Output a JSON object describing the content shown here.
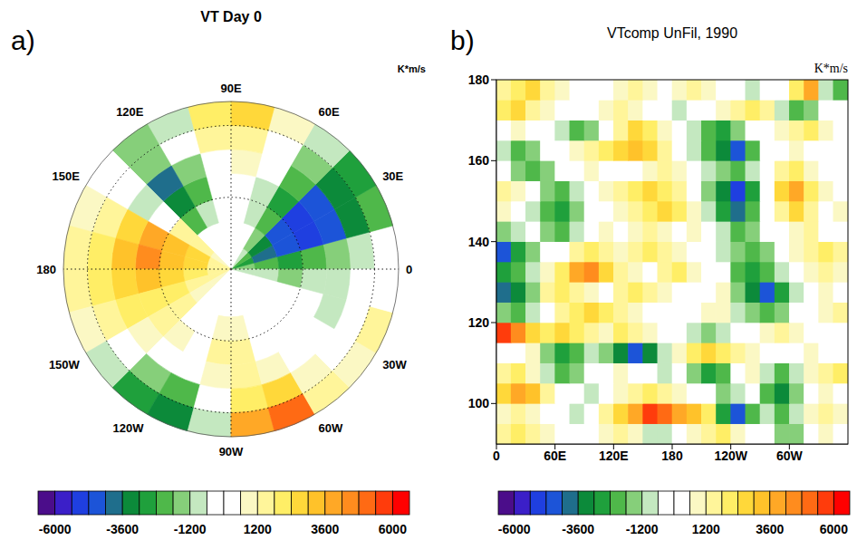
{
  "chart_data": [
    {
      "type": "polar_heatmap",
      "label": "a)",
      "title": "VT Day 0",
      "units": "K*m/s",
      "lon": [
        7.5,
        22.5,
        37.5,
        52.5,
        67.5,
        82.5,
        97.5,
        112.5,
        127.5,
        142.5,
        157.5,
        172.5,
        187.5,
        202.5,
        217.5,
        232.5,
        247.5,
        262.5,
        277.5,
        292.5,
        307.5,
        322.5,
        337.5,
        352.5
      ],
      "lat": [
        85,
        75,
        65,
        55,
        45,
        35,
        25
      ],
      "lat_range": [
        20,
        90
      ],
      "cells": [
        [
          -1800,
          -3000,
          -2400,
          -1200,
          0,
          0,
          0,
          0,
          0,
          600,
          1200,
          1200,
          1200,
          1200,
          600,
          0,
          0,
          0,
          0,
          0,
          0,
          0,
          -600,
          -1200
        ],
        [
          -2400,
          -4200,
          -3600,
          -1800,
          -600,
          0,
          0,
          0,
          -600,
          1200,
          2400,
          2400,
          1800,
          1200,
          600,
          0,
          0,
          0,
          0,
          0,
          0,
          0,
          0,
          -1200
        ],
        [
          -3000,
          -4800,
          -4800,
          -2400,
          -1200,
          0,
          0,
          -1200,
          -2400,
          1200,
          3000,
          3000,
          2400,
          1800,
          1200,
          0,
          0,
          600,
          600,
          0,
          0,
          0,
          -600,
          -1800
        ],
        [
          -2400,
          -5400,
          -5400,
          -3000,
          -1200,
          0,
          -600,
          -2400,
          -3600,
          -600,
          3600,
          4200,
          3000,
          1800,
          1200,
          600,
          0,
          1200,
          1200,
          0,
          0,
          0,
          -600,
          -1200
        ],
        [
          -1800,
          -4800,
          -4800,
          -2400,
          -600,
          600,
          0,
          -1800,
          -4200,
          -1200,
          2400,
          3000,
          2400,
          1800,
          600,
          0,
          -600,
          600,
          1200,
          600,
          0,
          0,
          -1200,
          -1200
        ],
        [
          -1200,
          -3600,
          -3600,
          -1800,
          0,
          1200,
          1200,
          -600,
          -1800,
          -600,
          1200,
          1800,
          1800,
          1200,
          0,
          -1800,
          -2400,
          -600,
          1800,
          2400,
          600,
          0,
          -600,
          -600
        ],
        [
          -600,
          -2400,
          -3000,
          -1200,
          600,
          2400,
          1800,
          -1200,
          -1800,
          -600,
          600,
          1200,
          1200,
          600,
          -1200,
          -3000,
          -3600,
          -1200,
          3600,
          4800,
          1200,
          600,
          1200,
          0
        ]
      ],
      "lon_ticks": [
        0,
        {
          "value": 30,
          "label": "30E"
        },
        {
          "value": 60,
          "label": "60E"
        },
        {
          "value": 90,
          "label": "90E"
        },
        {
          "value": 120,
          "label": "120E"
        },
        {
          "value": 150,
          "label": "150E"
        },
        180,
        {
          "value": 210,
          "label": "150W"
        },
        {
          "value": 240,
          "label": "120W"
        },
        {
          "value": 270,
          "label": "90W"
        },
        {
          "value": 300,
          "label": "60W"
        },
        {
          "value": 330,
          "label": "30W"
        }
      ],
      "lat_ticks": [
        30,
        60
      ],
      "grid": true,
      "colorbar": {
        "levels": [
          -6000,
          -5400,
          -4800,
          -4200,
          -3600,
          -3000,
          -2400,
          -1800,
          -1200,
          -600,
          0,
          600,
          1200,
          1800,
          2400,
          3000,
          3600,
          4200,
          4800,
          5400,
          6000
        ],
        "colors": [
          "#4b0d8a",
          "#3b1fc8",
          "#1f3fe0",
          "#1c54d8",
          "#1f6e8c",
          "#0c8a3a",
          "#1fa03c",
          "#4fb84a",
          "#86cf7a",
          "#c4e8c0",
          "#ffffff",
          "#ffffff",
          "#fbf8c4",
          "#fff59a",
          "#ffee66",
          "#ffd83a",
          "#ffc22a",
          "#ffa826",
          "#ff8c1e",
          "#ff6a14",
          "#ff3c0c",
          "#ff0000"
        ],
        "ticks": [
          -6000,
          -3600,
          -1200,
          1200,
          3600,
          6000
        ]
      }
    },
    {
      "type": "heatmap",
      "label": "b)",
      "title": "VTcomp UnFil, 1990",
      "units": "K*m/s",
      "x": [
        7.5,
        22.5,
        37.5,
        52.5,
        67.5,
        82.5,
        97.5,
        112.5,
        127.5,
        142.5,
        157.5,
        172.5,
        187.5,
        202.5,
        217.5,
        232.5,
        247.5,
        262.5,
        277.5,
        292.5,
        307.5,
        322.5,
        337.5,
        352.5
      ],
      "y": [
        92.5,
        97.5,
        102.5,
        107.5,
        112.5,
        117.5,
        122.5,
        127.5,
        132.5,
        137.5,
        142.5,
        147.5,
        152.5,
        157.5,
        162.5,
        167.5,
        172.5,
        177.5
      ],
      "cells": [
        [
          1200,
          1800,
          1500,
          600,
          0,
          -600,
          0,
          600,
          1200,
          900,
          -1200,
          -900,
          0,
          600,
          1200,
          1800,
          900,
          0,
          -600,
          -1800,
          -1500,
          0,
          600,
          0
        ],
        [
          600,
          1200,
          900,
          0,
          -600,
          -1200,
          0,
          1200,
          2400,
          3600,
          5400,
          4800,
          3600,
          3000,
          1800,
          -3000,
          -4800,
          -2400,
          -1200,
          -2400,
          -1200,
          600,
          1200,
          600
        ],
        [
          2400,
          3600,
          3000,
          1200,
          0,
          -600,
          -1200,
          0,
          600,
          1200,
          1800,
          1200,
          600,
          0,
          -600,
          -1800,
          -1200,
          -600,
          -2400,
          -3600,
          -1800,
          0,
          600,
          0
        ],
        [
          1200,
          1800,
          600,
          -1200,
          -2400,
          -1800,
          -600,
          0,
          600,
          0,
          -600,
          -1200,
          -600,
          -1800,
          -3000,
          -2400,
          -600,
          600,
          -1200,
          -2400,
          -1200,
          600,
          1200,
          1800
        ],
        [
          -600,
          0,
          600,
          -1800,
          -3000,
          -2400,
          -1200,
          -1800,
          -3600,
          -4800,
          -3600,
          -1200,
          600,
          1800,
          2400,
          1800,
          1200,
          600,
          0,
          -600,
          0,
          600,
          0,
          -600
        ],
        [
          5400,
          4200,
          2400,
          1800,
          2400,
          1800,
          1200,
          600,
          1800,
          1200,
          600,
          0,
          -600,
          -1200,
          -1800,
          -1200,
          -600,
          0,
          600,
          1200,
          600,
          0,
          -600,
          0
        ],
        [
          -1800,
          -2400,
          -1200,
          0,
          1200,
          1800,
          2400,
          1800,
          1200,
          600,
          0,
          -600,
          -600,
          0,
          600,
          600,
          -1200,
          -1800,
          -2400,
          -1800,
          -600,
          0,
          600,
          1200
        ],
        [
          -4200,
          -3600,
          -1800,
          1200,
          1800,
          1200,
          600,
          0,
          1200,
          1800,
          1200,
          600,
          0,
          -600,
          0,
          600,
          -1800,
          -3600,
          -4800,
          -3000,
          -1200,
          0,
          600,
          0
        ],
        [
          -3000,
          -2400,
          -1200,
          600,
          1800,
          3600,
          4200,
          2400,
          1200,
          600,
          0,
          1200,
          1800,
          600,
          0,
          -600,
          -2400,
          -3000,
          -2400,
          -1200,
          0,
          600,
          1200,
          600
        ],
        [
          -4800,
          -3000,
          -1800,
          -600,
          0,
          1200,
          1800,
          1200,
          600,
          1200,
          1800,
          1200,
          600,
          0,
          -600,
          -1200,
          -1800,
          -2400,
          -1800,
          -600,
          600,
          1200,
          1800,
          1200
        ],
        [
          -1800,
          -1200,
          -600,
          -1800,
          -2400,
          -1200,
          0,
          600,
          0,
          600,
          1200,
          600,
          0,
          600,
          0,
          -1200,
          -2400,
          -1800,
          -600,
          0,
          600,
          1200,
          0,
          -600
        ],
        [
          600,
          0,
          -1200,
          -2400,
          -3000,
          -1800,
          -600,
          0,
          600,
          1200,
          1800,
          2400,
          1800,
          600,
          -1200,
          -3000,
          -4200,
          -2400,
          -600,
          1200,
          2400,
          1200,
          0,
          600
        ],
        [
          1200,
          600,
          -600,
          -1800,
          -2400,
          -1200,
          0,
          600,
          1200,
          1800,
          2400,
          1800,
          1200,
          0,
          -1800,
          -3600,
          -5400,
          -3000,
          0,
          2400,
          3600,
          1800,
          600,
          0
        ],
        [
          -600,
          -1800,
          -2400,
          -1800,
          -600,
          0,
          600,
          0,
          -600,
          0,
          600,
          1200,
          600,
          -600,
          -1200,
          -1800,
          -2400,
          -1200,
          0,
          1200,
          1800,
          600,
          0,
          -600
        ],
        [
          -1200,
          -2400,
          -1800,
          -600,
          0,
          600,
          1200,
          1800,
          2400,
          3000,
          2400,
          1200,
          0,
          -1200,
          -2400,
          -3600,
          -4800,
          -2400,
          -600,
          0,
          600,
          0,
          -600,
          0
        ],
        [
          0,
          600,
          0,
          -600,
          -1200,
          -2400,
          -1800,
          0,
          1200,
          2400,
          1800,
          600,
          0,
          -1200,
          -2400,
          -3000,
          -1800,
          -600,
          0,
          600,
          1200,
          1800,
          600,
          0
        ],
        [
          1800,
          2400,
          1200,
          600,
          0,
          -600,
          0,
          600,
          1200,
          600,
          0,
          -600,
          -1200,
          -600,
          0,
          600,
          1200,
          1800,
          1200,
          -1200,
          -2400,
          -1800,
          -600,
          0
        ],
        [
          1200,
          1800,
          2400,
          1200,
          600,
          0,
          -600,
          0,
          600,
          1200,
          600,
          0,
          600,
          1200,
          600,
          0,
          -600,
          -1200,
          -600,
          0,
          1800,
          3600,
          -1200,
          -2400
        ]
      ],
      "xlim": [
        0,
        360
      ],
      "xticks": [
        0,
        {
          "value": 60,
          "label": "60E"
        },
        {
          "value": 120,
          "label": "120E"
        },
        180,
        {
          "value": 240,
          "label": "120W"
        },
        {
          "value": 300,
          "label": "60W"
        }
      ],
      "ylim": [
        90,
        180
      ],
      "yticks": [
        100,
        120,
        140,
        160,
        180
      ],
      "colorbar": {
        "levels": [
          -6000,
          -5400,
          -4800,
          -4200,
          -3600,
          -3000,
          -2400,
          -1800,
          -1200,
          -600,
          0,
          600,
          1200,
          1800,
          2400,
          3000,
          3600,
          4200,
          4800,
          5400,
          6000
        ],
        "colors": [
          "#4b0d8a",
          "#3b1fc8",
          "#1f3fe0",
          "#1c54d8",
          "#1f6e8c",
          "#0c8a3a",
          "#1fa03c",
          "#4fb84a",
          "#86cf7a",
          "#c4e8c0",
          "#ffffff",
          "#ffffff",
          "#fbf8c4",
          "#fff59a",
          "#ffee66",
          "#ffd83a",
          "#ffc22a",
          "#ffa826",
          "#ff8c1e",
          "#ff6a14",
          "#ff3c0c",
          "#ff0000"
        ],
        "ticks": [
          -6000,
          -3600,
          -1200,
          1200,
          3600,
          6000
        ]
      }
    }
  ]
}
